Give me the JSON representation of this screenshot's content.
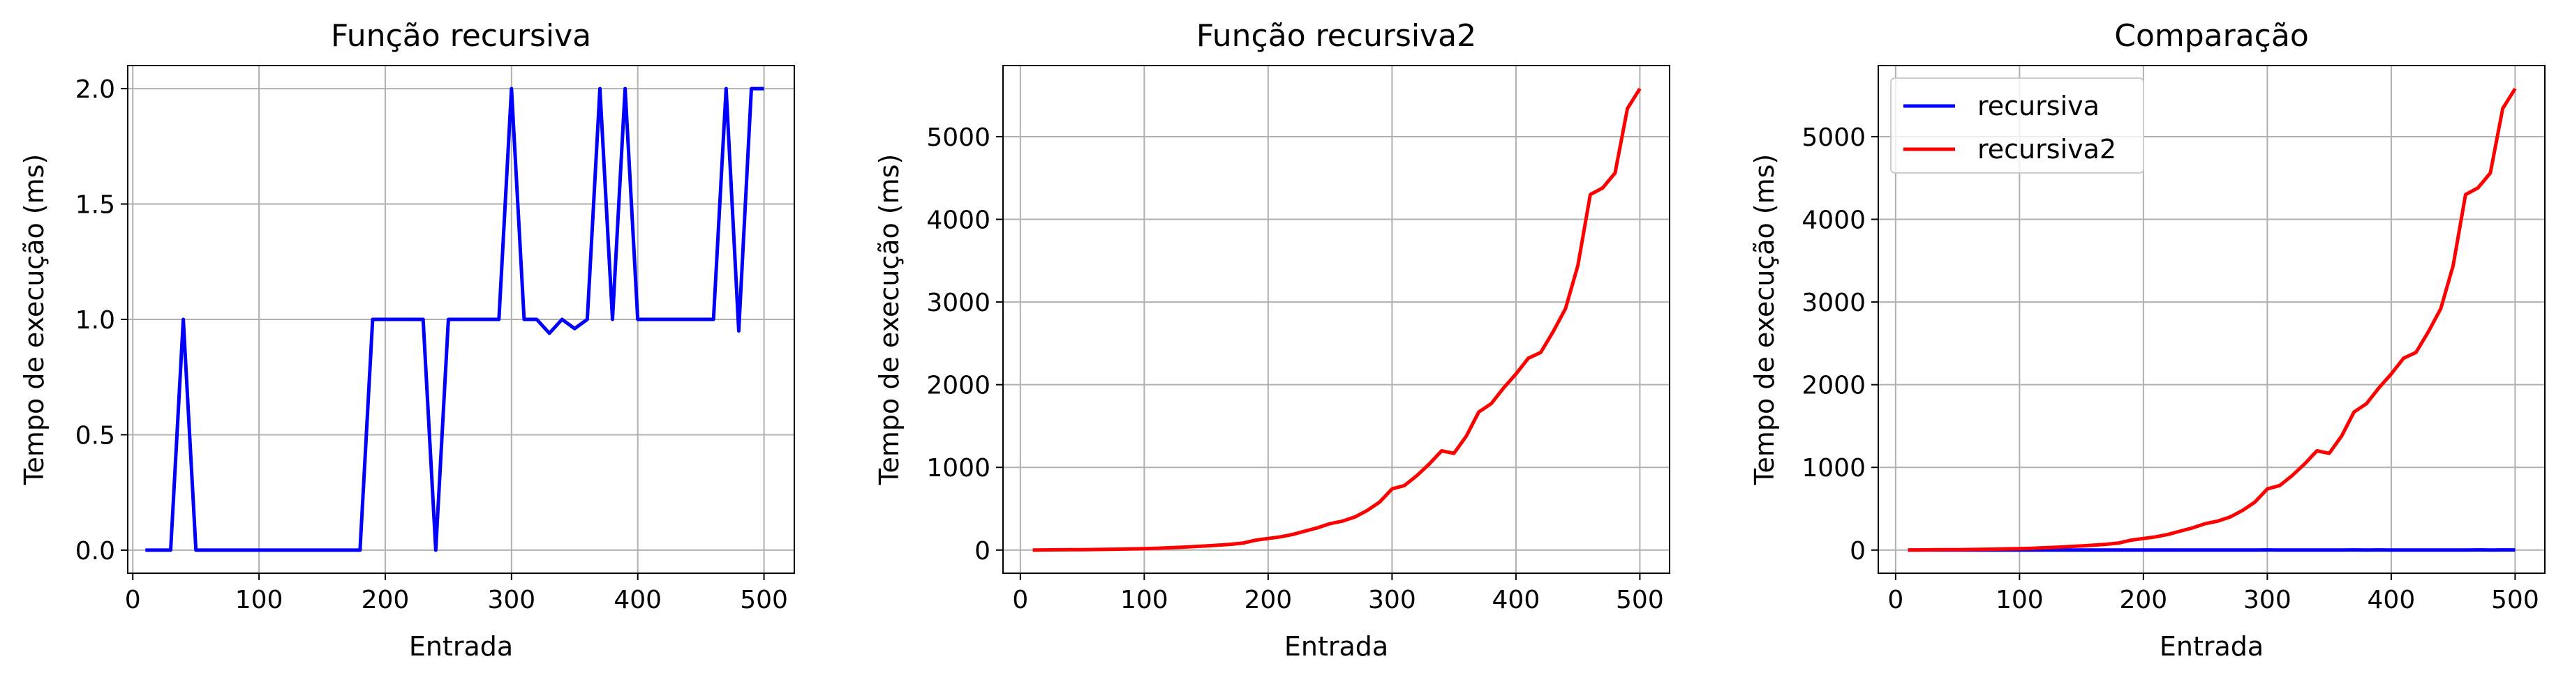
{
  "chart_data": [
    {
      "type": "line",
      "title": "Função recursiva",
      "xlabel": "Entrada",
      "ylabel": "Tempo de execução (ms)",
      "xlim": [
        -4,
        524
      ],
      "ylim": [
        -0.1,
        2.1
      ],
      "xticks": [
        0,
        100,
        200,
        300,
        400,
        500
      ],
      "yticks": [
        0.0,
        0.5,
        1.0,
        1.5,
        2.0
      ],
      "ytick_labels": [
        "0.0",
        "0.5",
        "1.0",
        "1.5",
        "2.0"
      ],
      "grid": true,
      "legend": null,
      "series": [
        {
          "color": "#0000ff",
          "x": [
            10,
            20,
            30,
            40,
            50,
            60,
            70,
            80,
            90,
            100,
            110,
            120,
            130,
            140,
            150,
            160,
            170,
            180,
            190,
            200,
            210,
            220,
            230,
            240,
            250,
            260,
            270,
            280,
            290,
            300,
            310,
            320,
            330,
            340,
            350,
            360,
            370,
            380,
            390,
            400,
            410,
            420,
            430,
            440,
            450,
            460,
            470,
            480,
            490,
            500
          ],
          "y": [
            0,
            0,
            0,
            1.0,
            0,
            0,
            0,
            0,
            0,
            0,
            0,
            0,
            0,
            0,
            0,
            0,
            0,
            0,
            1.0,
            1.0,
            1.0,
            1.0,
            1.0,
            0,
            1.0,
            1.0,
            1.0,
            1.0,
            1.0,
            2.0,
            1.0,
            1.0,
            0.94,
            1.0,
            0.96,
            1.0,
            2.0,
            1.0,
            2.0,
            1.0,
            1.0,
            1.0,
            1.0,
            1.0,
            1.0,
            1.0,
            2.0,
            0.95,
            2.0,
            2.0
          ]
        }
      ]
    },
    {
      "type": "line",
      "title": "Função recursiva2",
      "xlabel": "Entrada",
      "ylabel": "Tempo de execução (ms)",
      "xlim": [
        -14,
        524
      ],
      "ylim": [
        -280,
        5860
      ],
      "xticks": [
        0,
        100,
        200,
        300,
        400,
        500
      ],
      "yticks": [
        0,
        1000,
        2000,
        3000,
        4000,
        5000
      ],
      "ytick_labels": [
        "0",
        "1000",
        "2000",
        "3000",
        "4000",
        "5000"
      ],
      "grid": true,
      "legend": null,
      "series": [
        {
          "color": "#ff0000",
          "x": [
            10,
            20,
            30,
            40,
            50,
            60,
            70,
            80,
            90,
            100,
            110,
            120,
            130,
            140,
            150,
            160,
            170,
            180,
            190,
            200,
            210,
            220,
            230,
            240,
            250,
            260,
            270,
            280,
            290,
            300,
            310,
            320,
            330,
            340,
            350,
            360,
            370,
            380,
            390,
            400,
            410,
            420,
            430,
            440,
            450,
            460,
            470,
            480,
            490,
            500
          ],
          "y": [
            1,
            2,
            3,
            4,
            5,
            7,
            9,
            11,
            14,
            17,
            22,
            28,
            35,
            42,
            50,
            60,
            70,
            85,
            120,
            140,
            160,
            190,
            230,
            270,
            320,
            350,
            400,
            480,
            580,
            740,
            780,
            900,
            1040,
            1200,
            1170,
            1380,
            1670,
            1770,
            1960,
            2130,
            2320,
            2390,
            2640,
            2920,
            3440,
            4300,
            4380,
            4560,
            5340,
            5580
          ]
        }
      ]
    },
    {
      "type": "line",
      "title": "Comparação",
      "xlabel": "Entrada",
      "ylabel": "Tempo de execução (ms)",
      "xlim": [
        -14,
        524
      ],
      "ylim": [
        -280,
        5860
      ],
      "xticks": [
        0,
        100,
        200,
        300,
        400,
        500
      ],
      "yticks": [
        0,
        1000,
        2000,
        3000,
        4000,
        5000
      ],
      "ytick_labels": [
        "0",
        "1000",
        "2000",
        "3000",
        "4000",
        "5000"
      ],
      "grid": true,
      "legend": "upper left",
      "series": [
        {
          "name": "recursiva",
          "color": "#0000ff",
          "x": [
            10,
            20,
            30,
            40,
            50,
            60,
            70,
            80,
            90,
            100,
            110,
            120,
            130,
            140,
            150,
            160,
            170,
            180,
            190,
            200,
            210,
            220,
            230,
            240,
            250,
            260,
            270,
            280,
            290,
            300,
            310,
            320,
            330,
            340,
            350,
            360,
            370,
            380,
            390,
            400,
            410,
            420,
            430,
            440,
            450,
            460,
            470,
            480,
            490,
            500
          ],
          "y": [
            0,
            0,
            0,
            1.0,
            0,
            0,
            0,
            0,
            0,
            0,
            0,
            0,
            0,
            0,
            0,
            0,
            0,
            0,
            1.0,
            1.0,
            1.0,
            1.0,
            1.0,
            0,
            1.0,
            1.0,
            1.0,
            1.0,
            1.0,
            2.0,
            1.0,
            1.0,
            0.94,
            1.0,
            0.96,
            1.0,
            2.0,
            1.0,
            2.0,
            1.0,
            1.0,
            1.0,
            1.0,
            1.0,
            1.0,
            1.0,
            2.0,
            0.95,
            2.0,
            2.0
          ]
        },
        {
          "name": "recursiva2",
          "color": "#ff0000",
          "x": [
            10,
            20,
            30,
            40,
            50,
            60,
            70,
            80,
            90,
            100,
            110,
            120,
            130,
            140,
            150,
            160,
            170,
            180,
            190,
            200,
            210,
            220,
            230,
            240,
            250,
            260,
            270,
            280,
            290,
            300,
            310,
            320,
            330,
            340,
            350,
            360,
            370,
            380,
            390,
            400,
            410,
            420,
            430,
            440,
            450,
            460,
            470,
            480,
            490,
            500
          ],
          "y": [
            1,
            2,
            3,
            4,
            5,
            7,
            9,
            11,
            14,
            17,
            22,
            28,
            35,
            42,
            50,
            60,
            70,
            85,
            120,
            140,
            160,
            190,
            230,
            270,
            320,
            350,
            400,
            480,
            580,
            740,
            780,
            900,
            1040,
            1200,
            1170,
            1380,
            1670,
            1770,
            1960,
            2130,
            2320,
            2390,
            2640,
            2920,
            3440,
            4300,
            4380,
            4560,
            5340,
            5580
          ]
        }
      ]
    }
  ]
}
